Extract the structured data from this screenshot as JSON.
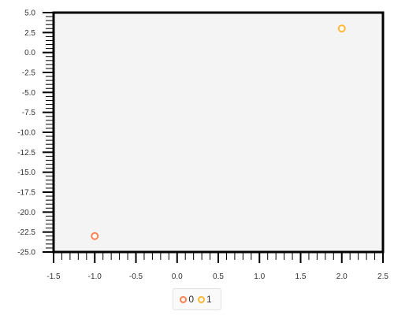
{
  "chart_data": {
    "type": "scatter",
    "title": "",
    "xlabel": "",
    "ylabel": "",
    "xlim": [
      -1.5,
      2.5
    ],
    "ylim": [
      -25.0,
      5.0
    ],
    "x_ticks": [
      "-1.5",
      "-1.0",
      "-0.5",
      "0.0",
      "0.5",
      "1.0",
      "1.5",
      "2.0",
      "2.5"
    ],
    "y_ticks": [
      "5.0",
      "2.5",
      "0.0",
      "-2.5",
      "-5.0",
      "-7.5",
      "-10.0",
      "-12.5",
      "-15.0",
      "-17.5",
      "-20.0",
      "-22.5",
      "-25.0"
    ],
    "grid": false,
    "legend_position": "bottom",
    "plot_background": "#f4f4f4",
    "series": [
      {
        "name": "0",
        "color": "#ff7f50",
        "points": [
          {
            "x": -1.0,
            "y": -23.0
          }
        ]
      },
      {
        "name": "1",
        "color": "#ffb732",
        "points": [
          {
            "x": 2.0,
            "y": 3.0
          }
        ]
      }
    ]
  }
}
